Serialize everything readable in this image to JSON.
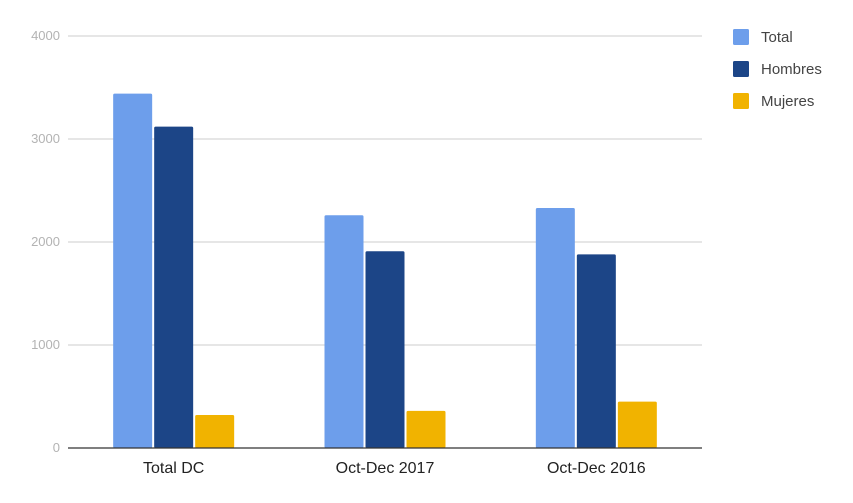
{
  "chart_data": {
    "type": "bar",
    "categories": [
      "Total DC",
      "Oct-Dec 2017",
      "Oct-Dec 2016"
    ],
    "series": [
      {
        "name": "Total",
        "color": "#6d9eeb",
        "values": [
          3440,
          2260,
          2330
        ]
      },
      {
        "name": "Hombres",
        "color": "#1c4587",
        "values": [
          3120,
          1910,
          1880
        ]
      },
      {
        "name": "Mujeres",
        "color": "#f1b300",
        "values": [
          320,
          360,
          450
        ]
      }
    ],
    "title": "",
    "xlabel": "",
    "ylabel": "",
    "ylim": [
      0,
      4000
    ],
    "yticks": [
      0,
      1000,
      2000,
      3000,
      4000
    ],
    "ytick_labels": [
      "0",
      "1000",
      "2000",
      "3000",
      "4000"
    ],
    "grid": true,
    "legend_position": "right"
  }
}
